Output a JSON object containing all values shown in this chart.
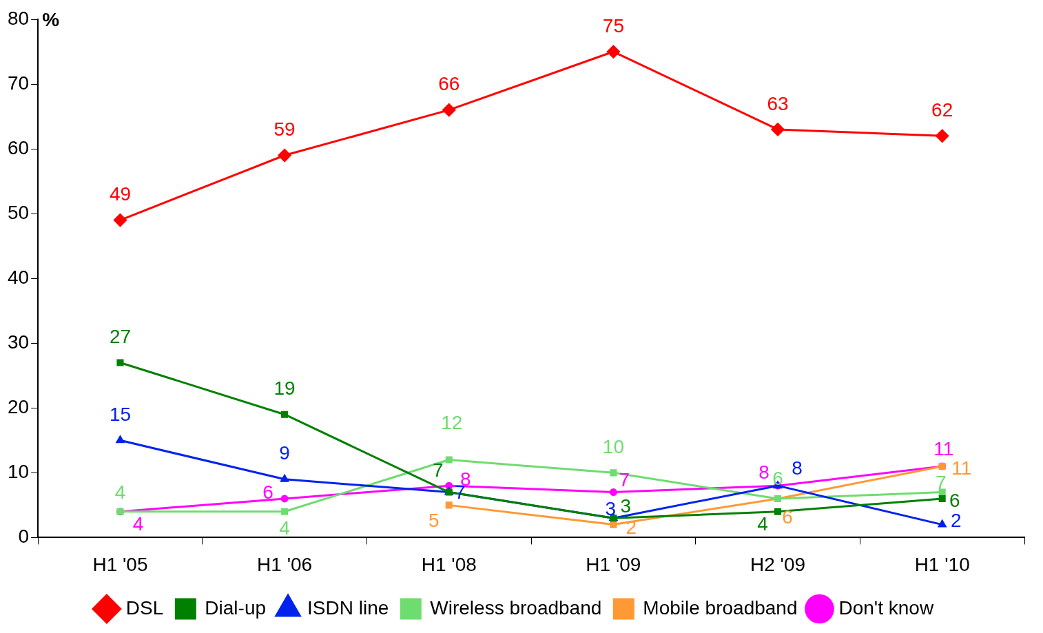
{
  "chart_data": {
    "type": "line",
    "ylabel": "%",
    "categories": [
      "H1 '05",
      "H1 '06",
      "H1 '08",
      "H1 '09",
      "H2 '09",
      "H1 '10"
    ],
    "series": [
      {
        "name": "DSL",
        "color": "#ff0000",
        "marker": "diamond",
        "values": [
          49,
          59,
          66,
          75,
          63,
          62
        ]
      },
      {
        "name": "Dial-up",
        "color": "#008000",
        "marker": "square",
        "values": [
          27,
          19,
          7,
          3,
          4,
          6
        ]
      },
      {
        "name": "ISDN line",
        "color": "#0022ee",
        "marker": "triangle",
        "values": [
          15,
          9,
          7,
          3,
          8,
          2
        ]
      },
      {
        "name": "Wireless broadband",
        "color": "#6fdc6f",
        "marker": "square",
        "values": [
          4,
          4,
          12,
          10,
          6,
          7
        ]
      },
      {
        "name": "Mobile broadband",
        "color": "#ff9933",
        "marker": "square",
        "values": [
          null,
          null,
          5,
          2,
          6,
          11
        ]
      },
      {
        "name": "Don't know",
        "color": "#ff00ff",
        "marker": "circle",
        "values": [
          4,
          6,
          8,
          7,
          8,
          11
        ]
      }
    ],
    "ylim": [
      0,
      80
    ],
    "yticks": [
      0,
      10,
      20,
      30,
      40,
      50,
      60,
      70,
      80
    ],
    "grid": false,
    "legend": "bottom",
    "data_labels": true
  }
}
